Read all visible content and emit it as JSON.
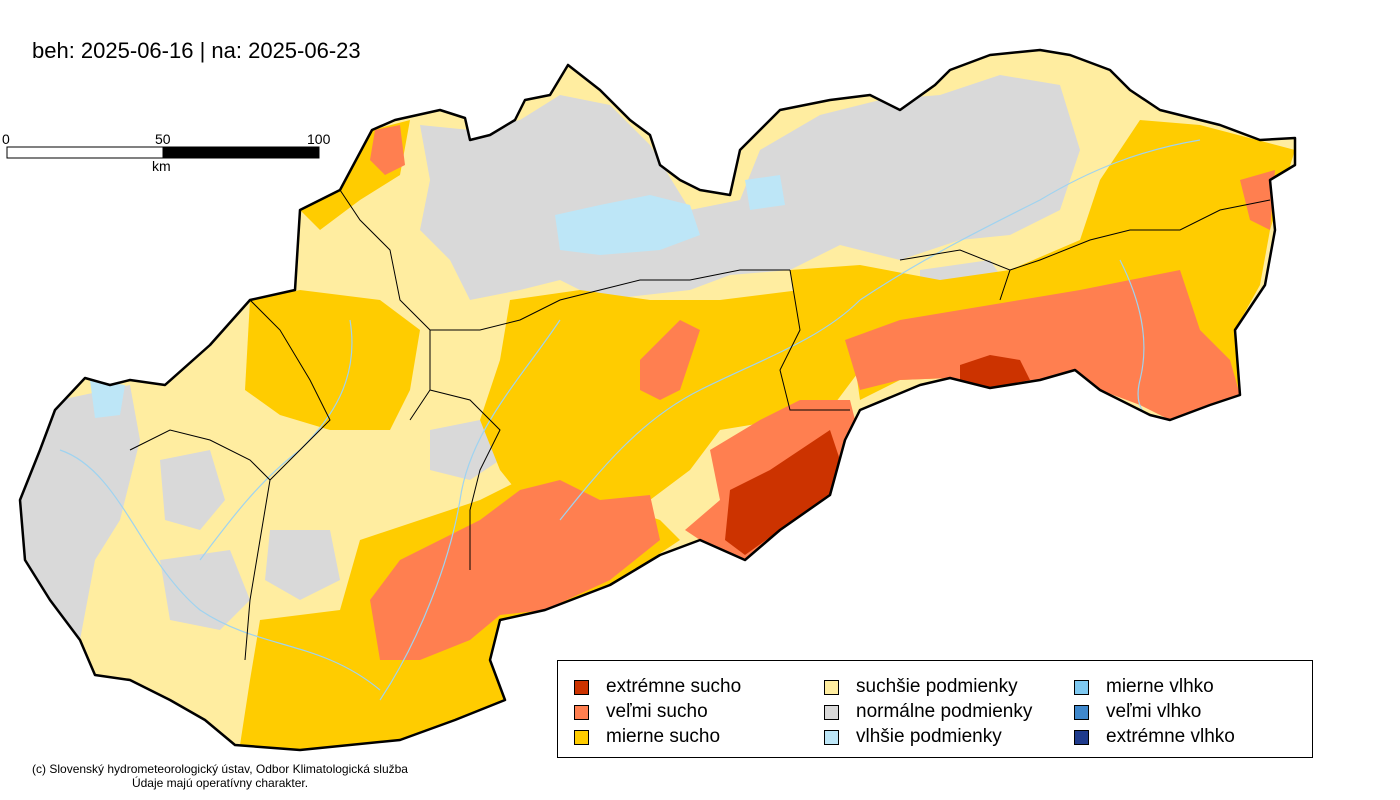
{
  "title": "beh: 2025-06-16 | na: 2025-06-23",
  "scale_bar": {
    "ticks": [
      "0",
      "50",
      "100"
    ],
    "unit": "km"
  },
  "legend": {
    "items": [
      {
        "label": "extrémne sucho",
        "color": "#cc3300"
      },
      {
        "label": "veľmi sucho",
        "color": "#ff7f50"
      },
      {
        "label": "mierne sucho",
        "color": "#ffcc00"
      },
      {
        "label": "suchšie podmienky",
        "color": "#ffeda0"
      },
      {
        "label": "normálne podmienky",
        "color": "#d9d9d9"
      },
      {
        "label": "vlhšie podmienky",
        "color": "#bde6f7"
      },
      {
        "label": "mierne vlhko",
        "color": "#7ec8f0"
      },
      {
        "label": "veľmi vlhko",
        "color": "#3f88cc"
      },
      {
        "label": "extrémne vlhko",
        "color": "#1f3b8c"
      }
    ]
  },
  "credit": {
    "line1": "(c) Slovenský hydrometeorologický ústav, Odbor Klimatologická služba",
    "line2": "Údaje majú operatívny charakter."
  }
}
